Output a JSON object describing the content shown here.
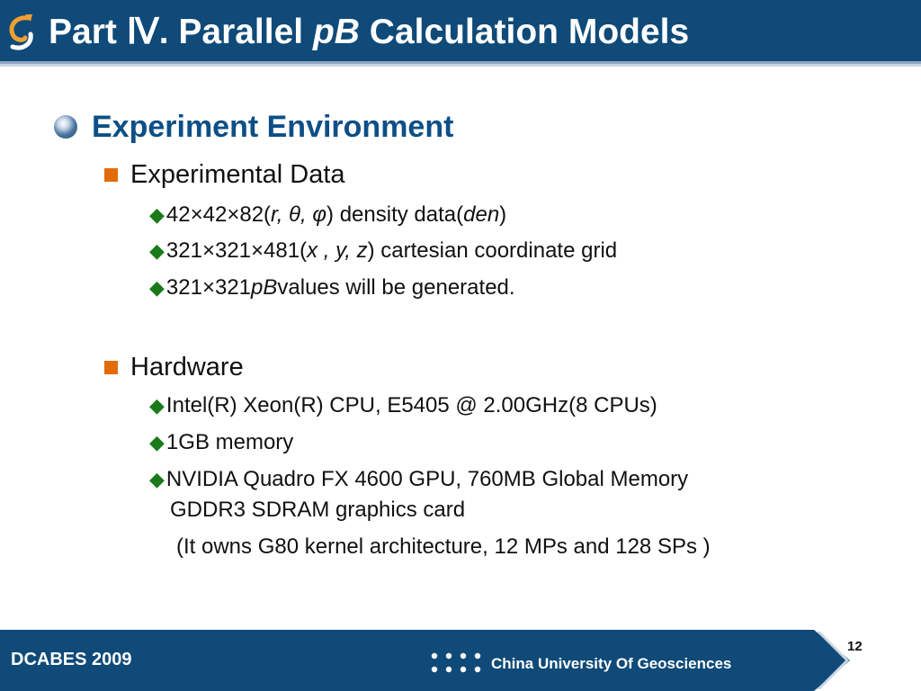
{
  "header": {
    "title_prefix": "Part Ⅳ.  Parallel ",
    "title_italic": "pB",
    "title_suffix": " Calculation Models"
  },
  "section": {
    "heading": "Experiment Environment"
  },
  "data_section": {
    "heading": "Experimental Data",
    "item1": {
      "a": "42×42×82(",
      "b": "r, θ, φ",
      "c": ") density data(",
      "d": "den",
      "e": ")"
    },
    "item2": {
      "a": "321×321×481(",
      "b": "x , y, z",
      "c": ") cartesian coordinate grid"
    },
    "item3": {
      "a": "321×321 ",
      "b": "pB",
      "c": " values will be generated."
    }
  },
  "hardware_section": {
    "heading": "Hardware",
    "item1": "Intel(R) Xeon(R) CPU, E5405 @ 2.00GHz(8 CPUs)",
    "item2": "1GB memory",
    "item3_line1": "NVIDIA Quadro FX 4600 GPU, 760MB Global Memory",
    "item3_line2": "GDDR3 SDRAM graphics card",
    "note": "(It owns G80 kernel architecture, 12 MPs and 128 SPs )"
  },
  "footer": {
    "conference": "DCABES 2009",
    "university": "China University Of Geosciences",
    "page_number": "12"
  },
  "colors": {
    "title_bar": "#0f4a78",
    "heading_blue": "#0d4f86",
    "square_bullet": "#e36c0a",
    "diamond_bullet": "#1a7a1a"
  }
}
